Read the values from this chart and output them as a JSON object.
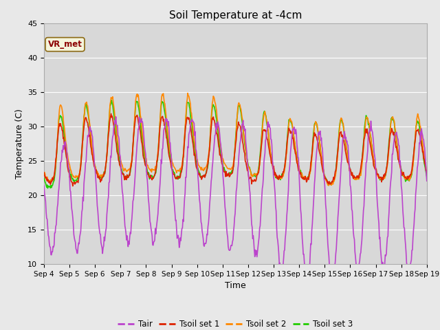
{
  "title": "Soil Temperature at -4cm",
  "xlabel": "Time",
  "ylabel": "Temperature (C)",
  "ylim": [
    10,
    45
  ],
  "background_color": "#e8e8e8",
  "plot_bg_color": "#d8d8d8",
  "annotation_text": "VR_met",
  "annotation_color": "#8b0000",
  "annotation_bg": "#f5f5dc",
  "colors": {
    "Tair": "#bb44cc",
    "Tsoil_set1": "#dd2200",
    "Tsoil_set2": "#ff8800",
    "Tsoil_set3": "#22cc00"
  },
  "legend_labels": [
    "Tair",
    "Tsoil set 1",
    "Tsoil set 2",
    "Tsoil set 3"
  ],
  "xtick_labels": [
    "Sep 4",
    "Sep 5",
    "Sep 6",
    "Sep 7",
    "Sep 8",
    "Sep 9",
    "Sep 10",
    "Sep 11",
    "Sep 12",
    "Sep 13",
    "Sep 14",
    "Sep 15",
    "Sep 16",
    "Sep 17",
    "Sep 18",
    "Sep 19"
  ],
  "xtick_positions": [
    0,
    1,
    2,
    3,
    4,
    5,
    6,
    7,
    8,
    9,
    10,
    11,
    12,
    13,
    14,
    15
  ],
  "ytick_positions": [
    10,
    15,
    20,
    25,
    30,
    35,
    40,
    45
  ],
  "grid_color": "#ffffff",
  "linewidth": 1.2
}
